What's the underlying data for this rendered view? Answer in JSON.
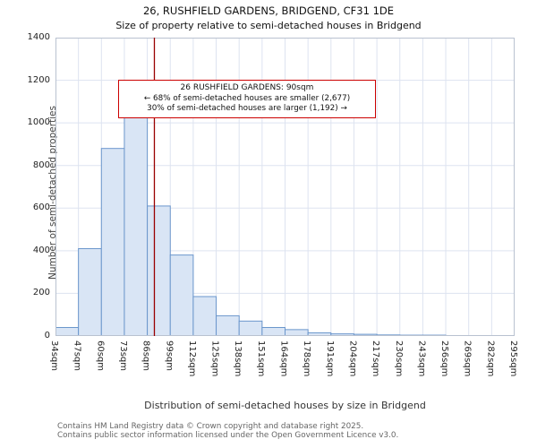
{
  "title": "26, RUSHFIELD GARDENS, BRIDGEND, CF31 1DE",
  "subtitle": "Size of property relative to semi-detached houses in Bridgend",
  "annotation": {
    "line1": "26 RUSHFIELD GARDENS: 90sqm",
    "line2": "← 68% of semi-detached houses are smaller (2,677)",
    "line3": "30% of semi-detached houses are larger (1,192) →"
  },
  "footer": {
    "line1": "Contains HM Land Registry data © Crown copyright and database right 2025.",
    "line2": "Contains public sector information licensed under the Open Government Licence v3.0."
  },
  "chart_data": {
    "type": "bar",
    "title": "26, RUSHFIELD GARDENS, BRIDGEND, CF31 1DE",
    "subtitle": "Size of property relative to semi-detached houses in Bridgend",
    "xlabel": "Distribution of semi-detached houses by size in Bridgend",
    "ylabel": "Number of semi-detached properties",
    "categories": [
      "34sqm",
      "47sqm",
      "60sqm",
      "73sqm",
      "86sqm",
      "99sqm",
      "112sqm",
      "125sqm",
      "138sqm",
      "151sqm",
      "164sqm",
      "178sqm",
      "191sqm",
      "204sqm",
      "217sqm",
      "230sqm",
      "243sqm",
      "256sqm",
      "269sqm",
      "282sqm",
      "295sqm"
    ],
    "values": [
      40,
      410,
      880,
      1160,
      610,
      380,
      185,
      95,
      70,
      40,
      30,
      15,
      10,
      8,
      5,
      4,
      4,
      2,
      0,
      0
    ],
    "ylim": [
      0,
      1400
    ],
    "yticks": [
      0,
      200,
      400,
      600,
      800,
      1000,
      1200,
      1400
    ],
    "grid": "on",
    "bin_start_sqm": 34,
    "bin_width_sqm": 13,
    "marker_value_sqm": 90,
    "marker_color": "#990000",
    "annotation_border_color": "#cc0000",
    "bar_fill": "#d9e5f5",
    "bar_edge": "#6b96cc",
    "grid_color": "#dde3f0",
    "plot_border_color": "#b9c2d0"
  }
}
